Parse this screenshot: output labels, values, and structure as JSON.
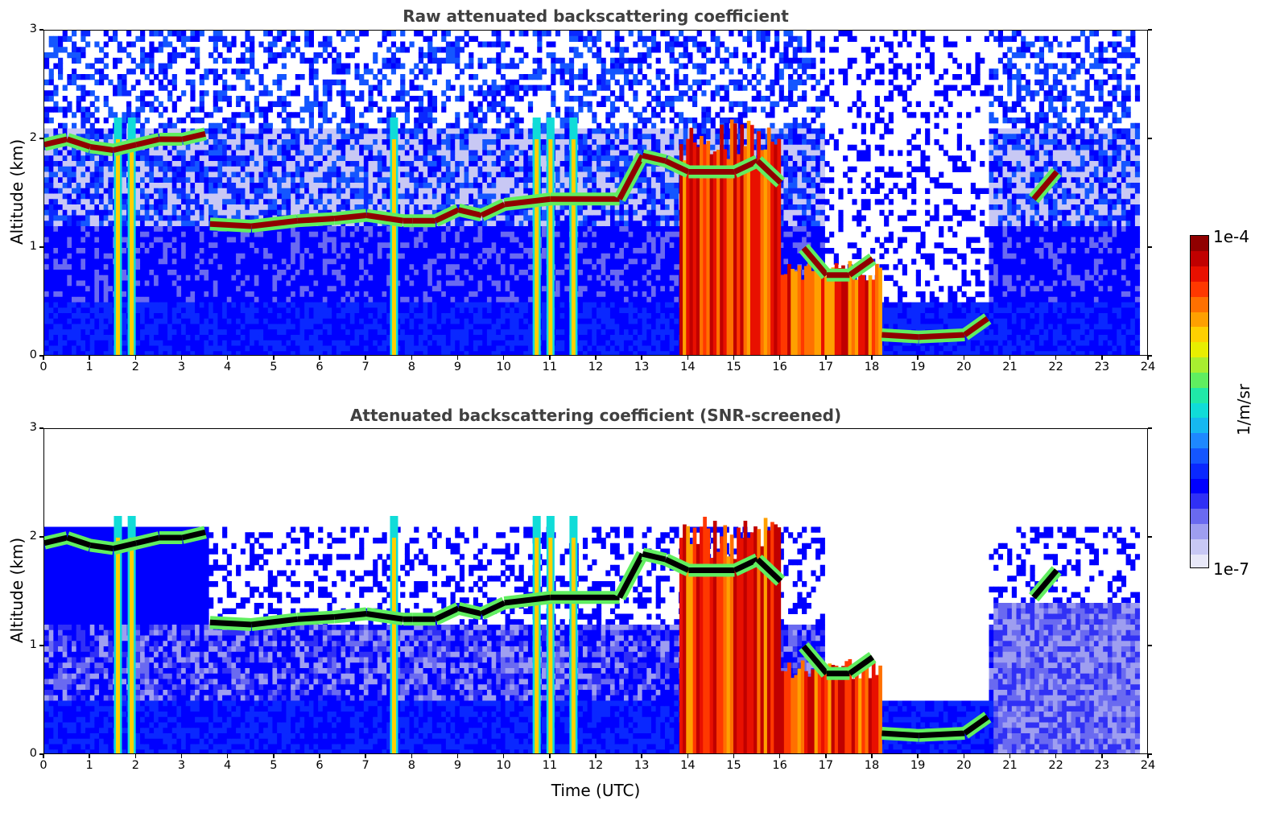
{
  "colormap": [
    "#e8e8f8",
    "#c8c8f4",
    "#9e9ef0",
    "#6a6af0",
    "#3030f5",
    "#0000ff",
    "#0a28ff",
    "#1456ff",
    "#1e88ff",
    "#16b8f0",
    "#10dcd8",
    "#20e8a8",
    "#60ee60",
    "#a8ee30",
    "#e8ee00",
    "#ffd000",
    "#ffa000",
    "#ff7000",
    "#ff3800",
    "#e81000",
    "#c00000",
    "#900000"
  ],
  "colorbar": {
    "max_label": "1e-4",
    "min_label": "1e-7",
    "unit_label": "1/m/sr",
    "scale": "log",
    "range": [
      1e-07,
      0.0001
    ]
  },
  "chart_data": [
    {
      "type": "heatmap",
      "title": "Raw attenuated backscattering coefficient",
      "xlabel": "",
      "ylabel": "Altitude (km)",
      "xlim": [
        0,
        24
      ],
      "ylim": [
        0,
        3
      ],
      "xticks": [
        "0",
        "1",
        "2",
        "3",
        "4",
        "5",
        "6",
        "7",
        "8",
        "9",
        "10",
        "11",
        "12",
        "13",
        "14",
        "15",
        "16",
        "17",
        "18",
        "19",
        "20",
        "21",
        "22",
        "23",
        "24"
      ],
      "yticks": [
        "0",
        "1",
        "2",
        "3"
      ],
      "cloud_layer_km": [
        [
          0,
          1.95
        ],
        [
          0.5,
          2.0
        ],
        [
          1,
          1.93
        ],
        [
          1.5,
          1.9
        ],
        [
          2,
          1.95
        ],
        [
          2.5,
          2.0
        ],
        [
          3,
          2.0
        ],
        [
          3.5,
          2.05
        ],
        [
          3.6,
          1.22
        ],
        [
          4.5,
          1.2
        ],
        [
          5.5,
          1.25
        ],
        [
          6.3,
          1.27
        ],
        [
          7,
          1.3
        ],
        [
          7.8,
          1.25
        ],
        [
          8,
          1.25
        ],
        [
          8.5,
          1.25
        ],
        [
          9,
          1.35
        ],
        [
          9.5,
          1.3
        ],
        [
          10,
          1.4
        ],
        [
          11,
          1.45
        ],
        [
          12,
          1.45
        ],
        [
          12.5,
          1.45
        ],
        [
          13,
          1.85
        ],
        [
          13.5,
          1.8
        ],
        [
          14,
          1.7
        ],
        [
          15,
          1.7
        ],
        [
          15.5,
          1.8
        ],
        [
          16,
          1.6
        ],
        [
          16.5,
          1.0
        ],
        [
          17,
          0.75
        ],
        [
          17.5,
          0.75
        ],
        [
          18,
          0.9
        ],
        [
          18.2,
          0.2
        ],
        [
          19,
          0.18
        ],
        [
          20,
          0.2
        ],
        [
          20.5,
          0.35
        ],
        [
          21.5,
          1.45
        ],
        [
          22,
          1.7
        ]
      ],
      "precipitation_columns_utc": [
        1.6,
        1.9,
        7.6,
        10.7,
        11.0,
        11.5
      ],
      "dense_cloud_intervals_utc": [
        [
          13.8,
          16.0
        ],
        [
          16.0,
          18.2
        ]
      ]
    },
    {
      "type": "heatmap",
      "title": "Attenuated backscattering coefficient (SNR-screened)",
      "xlabel": "Time (UTC)",
      "ylabel": "Altitude (km)",
      "xlim": [
        0,
        24
      ],
      "ylim": [
        0,
        3
      ],
      "xticks": [
        "0",
        "1",
        "2",
        "3",
        "4",
        "5",
        "6",
        "7",
        "8",
        "9",
        "10",
        "11",
        "12",
        "13",
        "14",
        "15",
        "16",
        "17",
        "18",
        "19",
        "20",
        "21",
        "22",
        "23",
        "24"
      ],
      "yticks": [
        "0",
        "1",
        "2",
        "3"
      ]
    }
  ]
}
